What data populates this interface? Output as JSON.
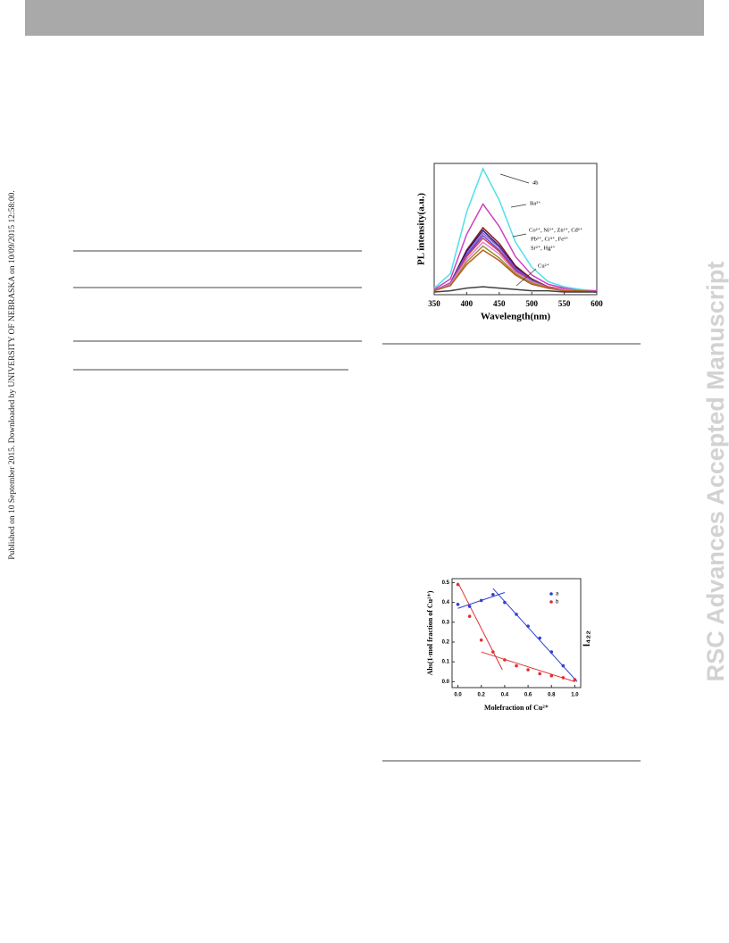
{
  "sidebar_text": "Published on 10 September 2015. Downloaded by UNIVERSITY OF NEBRASKA on 10/09/2015 12:58:00.",
  "watermark": "RSC Advances Accepted Manuscript",
  "chart_data": [
    {
      "type": "line",
      "xlabel": "Wavelength(nm)",
      "ylabel": "PL intensity(a.u.)",
      "annotations": [
        "4b",
        "Ba²⁺",
        "Co²⁺, Ni²⁺, Zn²⁺, Cd²⁺",
        "Pb²⁺, Cr³⁺, Fe³⁺",
        "Sr²⁺, Hg²⁺",
        "Cu²⁺"
      ],
      "x": [
        350,
        375,
        400,
        425,
        450,
        475,
        500,
        525,
        550,
        575,
        600
      ],
      "xlim": [
        350,
        600
      ],
      "xticks": [
        350,
        400,
        450,
        500,
        550,
        600
      ],
      "ylim": [
        0,
        100
      ],
      "series": [
        {
          "color": "#4fe0e8",
          "values": [
            5,
            16,
            63,
            96,
            72,
            40,
            21,
            10,
            6,
            4,
            3
          ]
        },
        {
          "color": "#d040c0",
          "values": [
            4,
            12,
            46,
            69,
            52,
            29,
            15,
            8,
            5,
            3,
            3
          ]
        },
        {
          "color": "#8b1a1a",
          "values": [
            3,
            9,
            34,
            51,
            39,
            22,
            12,
            6,
            4,
            3,
            2
          ]
        },
        {
          "color": "#1a1a8a",
          "values": [
            3,
            9,
            33,
            49,
            37,
            21,
            11,
            6,
            4,
            3,
            2
          ]
        },
        {
          "color": "#a050c0",
          "values": [
            3,
            9,
            31,
            47,
            36,
            20,
            11,
            6,
            4,
            3,
            2
          ]
        },
        {
          "color": "#5050e0",
          "values": [
            3,
            8,
            30,
            45,
            34,
            19,
            11,
            6,
            4,
            3,
            2
          ]
        },
        {
          "color": "#e04040",
          "values": [
            3,
            8,
            29,
            43,
            33,
            18,
            10,
            6,
            4,
            3,
            2
          ]
        },
        {
          "color": "#e080e0",
          "values": [
            3,
            8,
            27,
            40,
            31,
            17,
            10,
            5,
            4,
            3,
            2
          ]
        },
        {
          "color": "#a09030",
          "values": [
            3,
            7,
            25,
            37,
            28,
            16,
            9,
            5,
            3,
            3,
            2
          ]
        },
        {
          "color": "#b06020",
          "values": [
            3,
            7,
            23,
            34,
            26,
            15,
            8,
            5,
            3,
            3,
            2
          ]
        },
        {
          "color": "#404040",
          "values": [
            2,
            3,
            5,
            6,
            5,
            4,
            3,
            3,
            2,
            2,
            2
          ]
        }
      ]
    },
    {
      "type": "scatter",
      "xlabel": "Molefraction of Cu²⁺",
      "ylabel": "Abs(1-mol fraction of Cu²⁺)",
      "annotations": [
        "I₄₂₂"
      ],
      "x": [
        0,
        0.1,
        0.2,
        0.3,
        0.4,
        0.5,
        0.6,
        0.7,
        0.8,
        0.9,
        1.0
      ],
      "xlim": [
        -0.05,
        1.05
      ],
      "xticks": [
        {
          "value": 0,
          "label": "0.0"
        },
        0.2,
        0.4,
        0.6,
        0.8,
        {
          "value": 1,
          "label": "1.0"
        }
      ],
      "ylim": [
        -0.03,
        0.52
      ],
      "yticks": [
        {
          "value": 0,
          "label": "0.0"
        },
        0.1,
        0.2,
        0.3,
        0.4,
        0.5
      ],
      "series": [
        {
          "name": "a",
          "color": "#3040d0",
          "values": [
            0.39,
            0.38,
            0.41,
            0.44,
            0.4,
            0.34,
            0.28,
            0.22,
            0.15,
            0.08,
            0.01
          ]
        },
        {
          "name": "b",
          "color": "#e03030",
          "values": [
            0.49,
            0.33,
            0.21,
            0.15,
            0.11,
            0.08,
            0.06,
            0.04,
            0.03,
            0.02,
            0.01
          ]
        }
      ],
      "fit_lines": [
        {
          "color": "#3040d0",
          "x": [
            0,
            0.4
          ],
          "values": [
            0.37,
            0.45
          ]
        },
        {
          "color": "#3040d0",
          "x": [
            0.3,
            1.02
          ],
          "values": [
            0.47,
            0.0
          ]
        },
        {
          "color": "#e03030",
          "x": [
            0,
            0.38
          ],
          "values": [
            0.5,
            0.06
          ]
        },
        {
          "color": "#e03030",
          "x": [
            0.2,
            1.0
          ],
          "values": [
            0.15,
            0.0
          ]
        }
      ]
    }
  ]
}
